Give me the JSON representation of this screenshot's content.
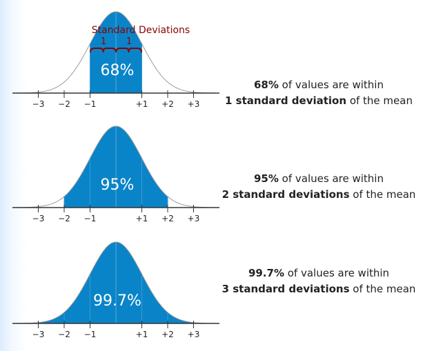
{
  "colors": {
    "fill": "#0a84c8",
    "curve": "#9a9a9a",
    "axis": "#333333",
    "bracket": "#8b0000"
  },
  "tick_labels": [
    "−3",
    "−2",
    "−1",
    "+1",
    "+2",
    "+3"
  ],
  "bracket": {
    "title": "Standard Deviations",
    "left_label": "1",
    "right_label": "1"
  },
  "panels": [
    {
      "sigma": 1,
      "percent_label": "68%",
      "caption": {
        "bold1": "68%",
        "text1": " of values are within",
        "bold2": "1 standard deviation",
        "text2": " of the mean"
      }
    },
    {
      "sigma": 2,
      "percent_label": "95%",
      "caption": {
        "bold1": "95%",
        "text1": " of values are within",
        "bold2": "2 standard deviations",
        "text2": " of the mean"
      }
    },
    {
      "sigma": 3,
      "percent_label": "99.7%",
      "caption": {
        "bold1": "99.7%",
        "text1": " of values are within",
        "bold2": "3 standard deviations",
        "text2": " of the mean"
      }
    }
  ]
}
